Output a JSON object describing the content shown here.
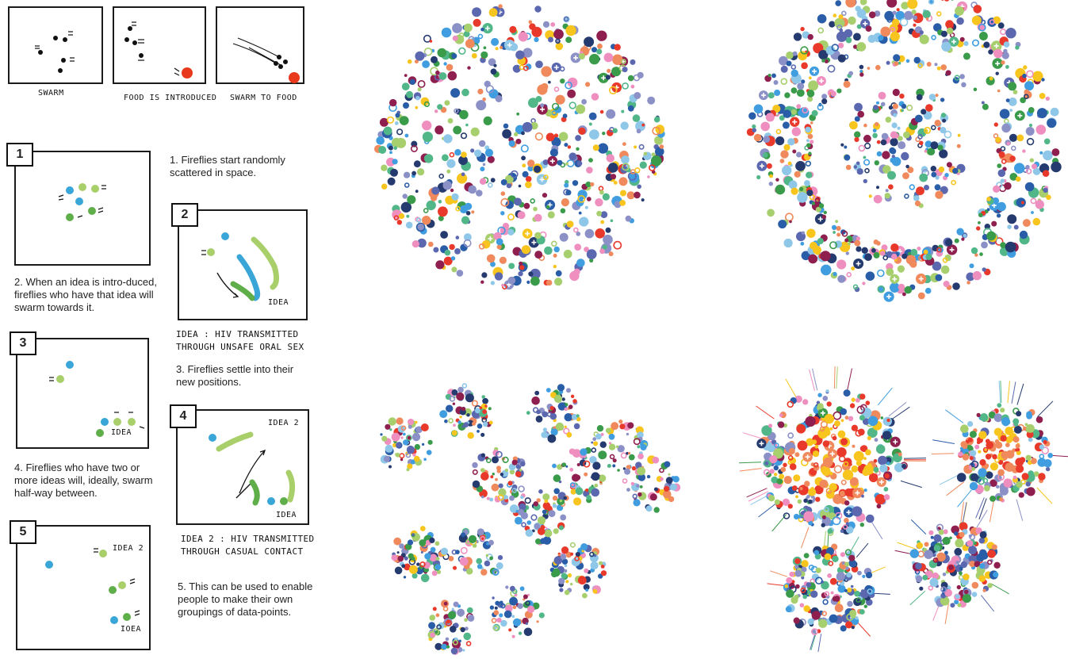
{
  "intro_panels": [
    {
      "caption": "SWARM"
    },
    {
      "caption": "FOOD IS INTRODUCED"
    },
    {
      "caption": "SWARM TO FOOD"
    }
  ],
  "steps": [
    {
      "number": "1",
      "text": "1. Fireflies start randomly scattered in space."
    },
    {
      "number": "2",
      "text": "2. When an idea is intro-duced, fireflies who have that idea will swarm towards it."
    },
    {
      "number": "3",
      "text": "3. Fireflies settle into their new positions."
    },
    {
      "number": "4",
      "text": "4. Fireflies who have two or more ideas will, ideally, swarm half-way between."
    },
    {
      "number": "5",
      "text": "5. This can be used to enable people to make their own groupings of data-points."
    }
  ],
  "sketch_labels": {
    "idea": "IDEA",
    "idea2": "IDEA 2",
    "idea_small": "IDEA",
    "ioea": "IOEA",
    "idea1_caption": "IDEA : HIV TRANSMITTED THROUGH UNSAFE ORAL SEX",
    "idea2_caption": "IDEA 2 : HIV TRANSMITTED THROUGH CASUAL CONTACT"
  },
  "colors": {
    "palette": [
      "#e8392b",
      "#f7c51e",
      "#5b68b0",
      "#8fc7e8",
      "#3a9b4a",
      "#a7cf6e",
      "#f08a5d",
      "#ef8fc0",
      "#253a6e",
      "#2a5da8",
      "#8e1f4f",
      "#52b788",
      "#3f9de0",
      "#8b91c7"
    ],
    "food": "#e8391c",
    "firefly_blue": "#3aa6d8",
    "firefly_green": "#5fae4a",
    "firefly_light": "#a8cf6a"
  }
}
